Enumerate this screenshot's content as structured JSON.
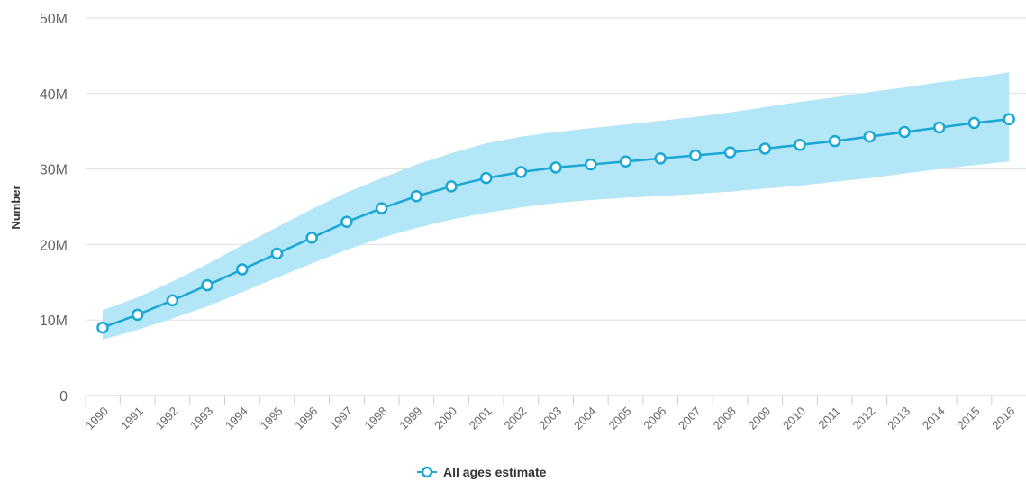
{
  "chart_data": {
    "type": "line",
    "ylabel": "Number",
    "xlabel": "",
    "categories": [
      "1990",
      "1991",
      "1992",
      "1993",
      "1994",
      "1995",
      "1996",
      "1997",
      "1998",
      "1999",
      "2000",
      "2001",
      "2002",
      "2003",
      "2004",
      "2005",
      "2006",
      "2007",
      "2008",
      "2009",
      "2010",
      "2011",
      "2012",
      "2013",
      "2014",
      "2015",
      "2016"
    ],
    "series": [
      {
        "name": "All ages estimate",
        "color": "#1aa7d6",
        "values": [
          9.0,
          10.7,
          12.6,
          14.6,
          16.7,
          18.8,
          20.9,
          23.0,
          24.8,
          26.4,
          27.7,
          28.8,
          29.6,
          30.2,
          30.6,
          31.0,
          31.4,
          31.8,
          32.2,
          32.7,
          33.2,
          33.7,
          34.3,
          34.9,
          35.5,
          36.1,
          36.6
        ],
        "lower": [
          7.4,
          8.7,
          10.2,
          11.8,
          13.7,
          15.6,
          17.5,
          19.3,
          20.9,
          22.2,
          23.3,
          24.2,
          24.9,
          25.5,
          25.9,
          26.2,
          26.4,
          26.7,
          27.0,
          27.4,
          27.8,
          28.3,
          28.8,
          29.4,
          30.0,
          30.5,
          31.0
        ],
        "upper": [
          11.3,
          13.0,
          15.1,
          17.4,
          19.9,
          22.3,
          24.7,
          26.9,
          28.8,
          30.6,
          32.1,
          33.4,
          34.3,
          34.9,
          35.4,
          35.9,
          36.4,
          36.9,
          37.5,
          38.2,
          38.9,
          39.5,
          40.2,
          40.8,
          41.5,
          42.1,
          42.8
        ],
        "band_color": "#b3e6f7"
      }
    ],
    "yticks": [
      "0",
      "10M",
      "20M",
      "30M",
      "40M",
      "50M"
    ],
    "ylim": [
      0,
      50
    ],
    "grid": true,
    "legend_position": "bottom-center"
  },
  "legend": {
    "label": "All ages estimate"
  }
}
